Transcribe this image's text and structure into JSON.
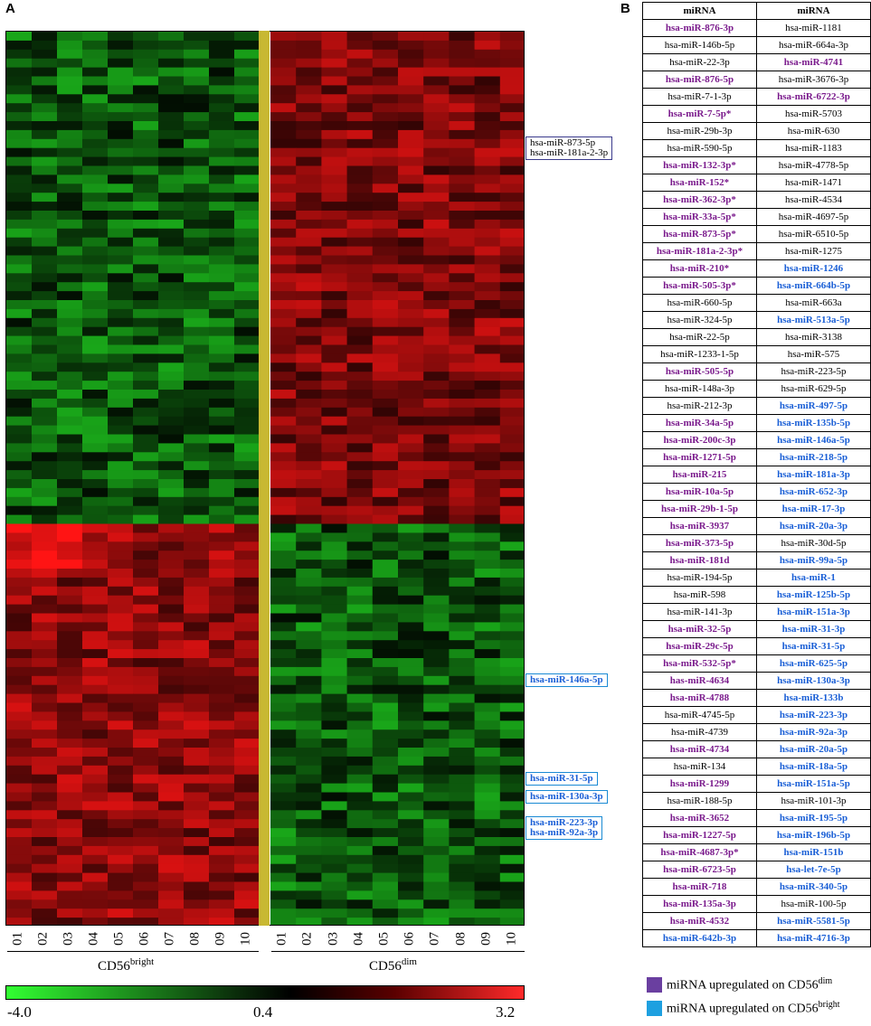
{
  "panel_a_label": "A",
  "panel_b_label": "B",
  "chart_data": {
    "type": "heatmap",
    "columns_left": [
      "01",
      "02",
      "03",
      "04",
      "05",
      "06",
      "07",
      "08",
      "09",
      "10"
    ],
    "columns_right": [
      "01",
      "02",
      "03",
      "04",
      "05",
      "06",
      "07",
      "08",
      "09",
      "10"
    ],
    "group_left": {
      "base": "CD56",
      "sup": "bright"
    },
    "group_right": {
      "base": "CD56",
      "sup": "dim"
    },
    "colorbar": {
      "min_label": "-4.0",
      "mid_label": "0.4",
      "max_label": "3.2",
      "min": -4.0,
      "mid": 0.4,
      "max": 3.2,
      "low_color": "#32ff32",
      "mid_color": "#000000",
      "high_color": "#ff2a2a"
    },
    "rows": 100,
    "annotations": [
      {
        "labels": [
          "hsa-miR-873-5p",
          "hsa-miR-181a-2-3p"
        ],
        "group": "purple",
        "row": 12
      },
      {
        "labels": [
          "hsa-miR-146a-5p"
        ],
        "group": "blue",
        "row": 72
      },
      {
        "labels": [
          "hsa-miR-31-5p"
        ],
        "group": "blue",
        "row": 83
      },
      {
        "labels": [
          "hsa-miR-130a-3p"
        ],
        "group": "blue",
        "row": 85
      },
      {
        "labels": [
          "hsa-miR-223-3p",
          "hsa-miR-92a-3p"
        ],
        "group": "blue",
        "row": 88
      }
    ]
  },
  "table": {
    "headers": [
      "miRNA",
      "miRNA"
    ],
    "rows": [
      [
        [
          "hsa-miR-876-3p",
          "p"
        ],
        [
          "hsa-miR-1181",
          "n"
        ]
      ],
      [
        [
          "hsa-miR-146b-5p",
          "n"
        ],
        [
          "hsa-miR-664a-3p",
          "n"
        ]
      ],
      [
        [
          "hsa-miR-22-3p",
          "n"
        ],
        [
          "hsa-miR-4741",
          "p"
        ]
      ],
      [
        [
          "hsa-miR-876-5p",
          "p"
        ],
        [
          "hsa-miR-3676-3p",
          "n"
        ]
      ],
      [
        [
          "hsa-miR-7-1-3p",
          "n"
        ],
        [
          "hsa-miR-6722-3p",
          "p"
        ]
      ],
      [
        [
          "hsa-miR-7-5p*",
          "p"
        ],
        [
          "hsa-miR-5703",
          "n"
        ]
      ],
      [
        [
          "hsa-miR-29b-3p",
          "n"
        ],
        [
          "hsa-miR-630",
          "n"
        ]
      ],
      [
        [
          "hsa-miR-590-5p",
          "n"
        ],
        [
          "hsa-miR-1183",
          "n"
        ]
      ],
      [
        [
          "hsa-miR-132-3p*",
          "p"
        ],
        [
          "hsa-miR-4778-5p",
          "n"
        ]
      ],
      [
        [
          "hsa-miR-152*",
          "p"
        ],
        [
          "hsa-miR-1471",
          "n"
        ]
      ],
      [
        [
          "hsa-miR-362-3p*",
          "p"
        ],
        [
          "hsa-miR-4534",
          "n"
        ]
      ],
      [
        [
          "hsa-miR-33a-5p*",
          "p"
        ],
        [
          "hsa-miR-4697-5p",
          "n"
        ]
      ],
      [
        [
          "hsa-miR-873-5p*",
          "p"
        ],
        [
          "hsa-miR-6510-5p",
          "n"
        ]
      ],
      [
        [
          "hsa-miR-181a-2-3p*",
          "p"
        ],
        [
          "hsa-miR-1275",
          "n"
        ]
      ],
      [
        [
          "hsa-miR-210*",
          "p"
        ],
        [
          "hsa-miR-1246",
          "b"
        ]
      ],
      [
        [
          "hsa-miR-505-3p*",
          "p"
        ],
        [
          "hsa-miR-664b-5p",
          "b"
        ]
      ],
      [
        [
          "hsa-miR-660-5p",
          "n"
        ],
        [
          "hsa-miR-663a",
          "n"
        ]
      ],
      [
        [
          "hsa-miR-324-5p",
          "n"
        ],
        [
          "hsa-miR-513a-5p",
          "b"
        ]
      ],
      [
        [
          "hsa-miR-22-5p",
          "n"
        ],
        [
          "hsa-miR-3138",
          "n"
        ]
      ],
      [
        [
          "hsa-miR-1233-1-5p",
          "n"
        ],
        [
          "hsa-miR-575",
          "n"
        ]
      ],
      [
        [
          "hsa-miR-505-5p",
          "p"
        ],
        [
          "hsa-miR-223-5p",
          "n"
        ]
      ],
      [
        [
          "hsa-miR-148a-3p",
          "n"
        ],
        [
          "hsa-miR-629-5p",
          "n"
        ]
      ],
      [
        [
          "hsa-miR-212-3p",
          "n"
        ],
        [
          "hsa-miR-497-5p",
          "b"
        ]
      ],
      [
        [
          "hsa-miR-34a-5p",
          "p"
        ],
        [
          "hsa-miR-135b-5p",
          "b"
        ]
      ],
      [
        [
          "hsa-miR-200c-3p",
          "p"
        ],
        [
          "hsa-miR-146a-5p",
          "b"
        ]
      ],
      [
        [
          "hsa-miR-1271-5p",
          "p"
        ],
        [
          "hsa-miR-218-5p",
          "b"
        ]
      ],
      [
        [
          "hsa-miR-215",
          "p"
        ],
        [
          "hsa-miR-181a-3p",
          "b"
        ]
      ],
      [
        [
          "hsa-miR-10a-5p",
          "p"
        ],
        [
          "hsa-miR-652-3p",
          "b"
        ]
      ],
      [
        [
          "hsa-miR-29b-1-5p",
          "p"
        ],
        [
          "hsa-miR-17-3p",
          "b"
        ]
      ],
      [
        [
          "hsa-miR-3937",
          "p"
        ],
        [
          "hsa-miR-20a-3p",
          "b"
        ]
      ],
      [
        [
          "hsa-miR-373-5p",
          "p"
        ],
        [
          "hsa-miR-30d-5p",
          "n"
        ]
      ],
      [
        [
          "hsa-miR-181d",
          "p"
        ],
        [
          "hsa-miR-99a-5p",
          "b"
        ]
      ],
      [
        [
          "hsa-miR-194-5p",
          "n"
        ],
        [
          "hsa-miR-1",
          "b"
        ]
      ],
      [
        [
          "hsa-miR-598",
          "n"
        ],
        [
          "hsa-miR-125b-5p",
          "b"
        ]
      ],
      [
        [
          "hsa-miR-141-3p",
          "n"
        ],
        [
          "hsa-miR-151a-3p",
          "b"
        ]
      ],
      [
        [
          "hsa-miR-32-5p",
          "p"
        ],
        [
          "hsa-miR-31-3p",
          "b"
        ]
      ],
      [
        [
          "hsa-miR-29c-5p",
          "p"
        ],
        [
          "hsa-miR-31-5p",
          "b"
        ]
      ],
      [
        [
          "hsa-miR-532-5p*",
          "p"
        ],
        [
          "hsa-miR-625-5p",
          "b"
        ]
      ],
      [
        [
          "has-miR-4634",
          "p"
        ],
        [
          "hsa-miR-130a-3p",
          "b"
        ]
      ],
      [
        [
          "hsa-miR-4788",
          "p"
        ],
        [
          "hsa-miR-133b",
          "b"
        ]
      ],
      [
        [
          "hsa-miR-4745-5p",
          "n"
        ],
        [
          "hsa-miR-223-3p",
          "b"
        ]
      ],
      [
        [
          "hsa-miR-4739",
          "n"
        ],
        [
          "hsa-miR-92a-3p",
          "b"
        ]
      ],
      [
        [
          "hsa-miR-4734",
          "p"
        ],
        [
          "hsa-miR-20a-5p",
          "b"
        ]
      ],
      [
        [
          "hsa-miR-134",
          "n"
        ],
        [
          "hsa-miR-18a-5p",
          "b"
        ]
      ],
      [
        [
          "hsa-miR-1299",
          "p"
        ],
        [
          "hsa-miR-151a-5p",
          "b"
        ]
      ],
      [
        [
          "hsa-miR-188-5p",
          "n"
        ],
        [
          "hsa-miR-101-3p",
          "n"
        ]
      ],
      [
        [
          "hsa-miR-3652",
          "p"
        ],
        [
          "hsa-miR-195-5p",
          "b"
        ]
      ],
      [
        [
          "hsa-miR-1227-5p",
          "p"
        ],
        [
          "hsa-miR-196b-5p",
          "b"
        ]
      ],
      [
        [
          "hsa-miR-4687-3p*",
          "p"
        ],
        [
          "hsa-miR-151b",
          "b"
        ]
      ],
      [
        [
          "hsa-miR-6723-5p",
          "p"
        ],
        [
          "hsa-let-7e-5p",
          "b"
        ]
      ],
      [
        [
          "hsa-miR-718",
          "p"
        ],
        [
          "hsa-miR-340-5p",
          "b"
        ]
      ],
      [
        [
          "hsa-miR-135a-3p",
          "p"
        ],
        [
          "hsa-miR-100-5p",
          "n"
        ]
      ],
      [
        [
          "hsa-miR-4532",
          "p"
        ],
        [
          "hsa-miR-5581-5p",
          "b"
        ]
      ],
      [
        [
          "hsa-miR-642b-3p",
          "b"
        ],
        [
          "hsa-miR-4716-3p",
          "b"
        ]
      ]
    ]
  },
  "legend": [
    {
      "color": "#6a3fa0",
      "text": "miRNA upregulated on CD56",
      "sup": "dim"
    },
    {
      "color": "#1ea0e0",
      "text": "miRNA upregulated on CD56",
      "sup": "bright"
    }
  ]
}
